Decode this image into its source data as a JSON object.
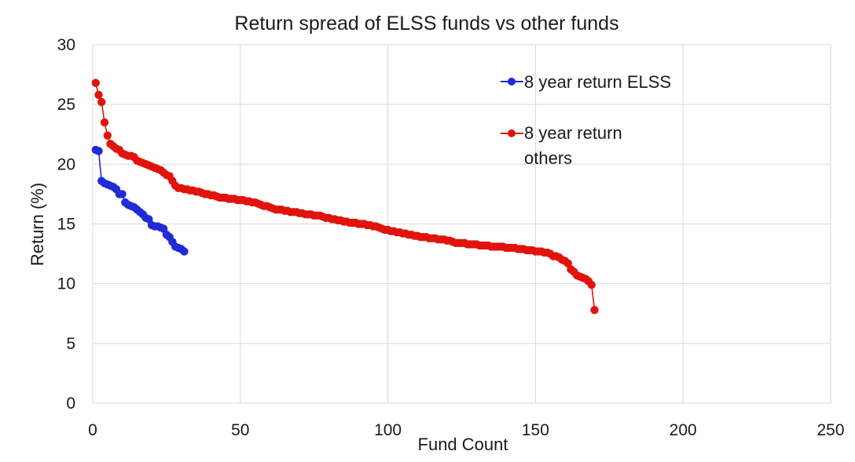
{
  "chart_data": {
    "type": "line",
    "title": "Return spread of ELSS funds vs other funds",
    "xlabel": "Fund Count",
    "ylabel": "Return (%)",
    "xlim": [
      0,
      250
    ],
    "ylim": [
      0,
      30
    ],
    "x_ticks": [
      "0",
      "50",
      "100",
      "150",
      "200",
      "250"
    ],
    "y_ticks": [
      "0",
      "5",
      "10",
      "15",
      "20",
      "25",
      "30"
    ],
    "grid": true,
    "legend_position": "top-right",
    "series": [
      {
        "name": "8 year return ELSS",
        "color": "#1f2bd6",
        "values": [
          21.2,
          21.1,
          18.6,
          18.4,
          18.3,
          18.2,
          18.1,
          17.9,
          17.5,
          17.5,
          16.8,
          16.6,
          16.5,
          16.4,
          16.2,
          16.0,
          15.8,
          15.5,
          15.4,
          14.9,
          14.8,
          14.8,
          14.7,
          14.6,
          14.1,
          13.9,
          13.5,
          13.1,
          13.0,
          12.9,
          12.7
        ]
      },
      {
        "name": "8 year return others",
        "name_lines": [
          "8 year return",
          "others"
        ],
        "color": "#e0140c",
        "values": [
          26.8,
          25.8,
          25.2,
          23.5,
          22.4,
          21.7,
          21.5,
          21.3,
          21.2,
          20.9,
          20.8,
          20.7,
          20.7,
          20.6,
          20.3,
          20.2,
          20.1,
          20.0,
          19.9,
          19.8,
          19.7,
          19.6,
          19.5,
          19.3,
          19.1,
          19.0,
          18.6,
          18.2,
          18.0,
          18.0,
          17.9,
          17.9,
          17.8,
          17.8,
          17.7,
          17.7,
          17.6,
          17.5,
          17.5,
          17.4,
          17.4,
          17.3,
          17.2,
          17.2,
          17.2,
          17.1,
          17.1,
          17.1,
          17.0,
          17.0,
          17.0,
          16.9,
          16.9,
          16.8,
          16.8,
          16.7,
          16.6,
          16.5,
          16.5,
          16.4,
          16.3,
          16.2,
          16.2,
          16.2,
          16.1,
          16.1,
          16.0,
          16.0,
          16.0,
          15.9,
          15.9,
          15.8,
          15.8,
          15.8,
          15.7,
          15.7,
          15.7,
          15.6,
          15.5,
          15.5,
          15.4,
          15.4,
          15.3,
          15.3,
          15.2,
          15.2,
          15.1,
          15.1,
          15.1,
          15.0,
          15.0,
          15.0,
          14.9,
          14.9,
          14.8,
          14.8,
          14.7,
          14.6,
          14.5,
          14.5,
          14.4,
          14.4,
          14.3,
          14.3,
          14.2,
          14.2,
          14.1,
          14.1,
          14.0,
          14.0,
          13.9,
          13.9,
          13.9,
          13.8,
          13.8,
          13.8,
          13.7,
          13.7,
          13.7,
          13.6,
          13.6,
          13.5,
          13.4,
          13.4,
          13.4,
          13.4,
          13.3,
          13.3,
          13.3,
          13.3,
          13.2,
          13.2,
          13.2,
          13.2,
          13.1,
          13.1,
          13.1,
          13.1,
          13.1,
          13.0,
          13.0,
          13.0,
          13.0,
          12.9,
          12.9,
          12.9,
          12.8,
          12.8,
          12.8,
          12.7,
          12.7,
          12.7,
          12.6,
          12.6,
          12.5,
          12.3,
          12.3,
          12.2,
          12.0,
          11.9,
          11.7,
          11.2,
          11.0,
          10.7,
          10.6,
          10.5,
          10.4,
          10.2,
          9.9,
          7.8
        ]
      }
    ]
  }
}
